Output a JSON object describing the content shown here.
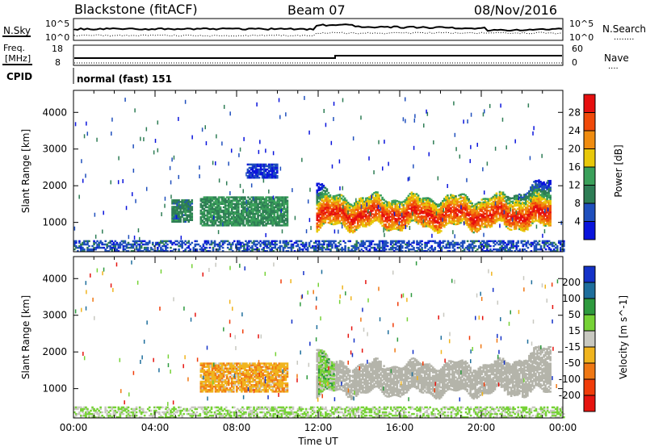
{
  "header": {
    "station": "Blackstone (fitACF)",
    "beam": "Beam 07",
    "date": "08/Nov/2016"
  },
  "top_panel": {
    "left_label": "N.Sky",
    "right_label": "N.Search",
    "right_legend_dots": "........",
    "left_ticks": [
      "10^5",
      "10^0"
    ],
    "right_ticks": [
      "10^5",
      "10^0"
    ]
  },
  "freq_panel": {
    "left_label_line1": "Freq.",
    "left_label_line2": "[MHz]",
    "left_ticks": [
      "18",
      "8"
    ],
    "right_label": "Nave",
    "right_legend_dots": "....",
    "right_ticks": [
      "60",
      "0"
    ]
  },
  "cpid_panel": {
    "label": "CPID",
    "value": "normal (fast) 151"
  },
  "colors": {
    "power_scale": [
      "#0a14dc",
      "#1f4fbd",
      "#2e7d55",
      "#3aa05a",
      "#e8c80a",
      "#f08c10",
      "#f04a0a",
      "#e60f0f"
    ],
    "velocity_scale": [
      "#1432c8",
      "#1e6e9c",
      "#2e9a3e",
      "#76d236",
      "#c8c8c0",
      "#f0b41e",
      "#f07814",
      "#f03c0a",
      "#e6140f"
    ],
    "ground_scatter": "#b4b4aa"
  },
  "chart_data": [
    {
      "type": "heatmap",
      "panel": "power",
      "ylabel": "Slant Range [km]",
      "xlabel": "",
      "yticks": [
        "1000",
        "2000",
        "3000",
        "4000"
      ],
      "xticks": [
        "00:00",
        "04:00",
        "08:00",
        "12:00",
        "16:00",
        "20:00",
        "00:00"
      ],
      "ylim": [
        200,
        4600
      ],
      "xlim": [
        0,
        24
      ],
      "colorbar_label": "Power [dB]",
      "colorbar_ticks": [
        "4",
        "8",
        "12",
        "16",
        "20",
        "24",
        "28"
      ],
      "colorbar_range": [
        0,
        32
      ],
      "regions": [
        {
          "t_start": 4.8,
          "t_end": 5.8,
          "range_low": 1000,
          "range_high": 1600,
          "power": 10
        },
        {
          "t_start": 6.2,
          "t_end": 10.5,
          "range_low": 900,
          "range_high": 1700,
          "power": 12
        },
        {
          "t_start": 8.5,
          "t_end": 10.0,
          "range_low": 2200,
          "range_high": 2600,
          "power": 4
        },
        {
          "t_start": 11.9,
          "t_end": 23.4,
          "range_low": 900,
          "range_high": 1900,
          "power": 22
        },
        {
          "t_start": 0.0,
          "t_end": 24.0,
          "range_low": 200,
          "range_high": 500,
          "power": 6
        }
      ]
    },
    {
      "type": "heatmap",
      "panel": "velocity",
      "ylabel": "Slant Range [km]",
      "xlabel": "Time UT",
      "yticks": [
        "1000",
        "2000",
        "3000",
        "4000"
      ],
      "xticks": [
        "00:00",
        "04:00",
        "08:00",
        "12:00",
        "16:00",
        "20:00",
        "00:00"
      ],
      "ylim": [
        200,
        4600
      ],
      "xlim": [
        0,
        24
      ],
      "colorbar_label": "Velocity [m s^-1]",
      "colorbar_ticks": [
        "200",
        "100",
        "50",
        "15",
        "-15",
        "-50",
        "-100",
        "-200"
      ],
      "colorbar_range": [
        -250,
        250
      ],
      "regions": [
        {
          "t_start": 6.2,
          "t_end": 10.5,
          "range_low": 900,
          "range_high": 1700,
          "velocity": -40
        },
        {
          "t_start": 11.9,
          "t_end": 23.4,
          "range_low": 900,
          "range_high": 2000,
          "velocity": 0,
          "ground_scatter": true
        },
        {
          "t_start": 12.0,
          "t_end": 12.8,
          "range_low": 1200,
          "range_high": 2000,
          "velocity": 30
        },
        {
          "t_start": 0.0,
          "t_end": 24.0,
          "range_low": 200,
          "range_high": 500,
          "velocity": 20
        }
      ]
    }
  ]
}
